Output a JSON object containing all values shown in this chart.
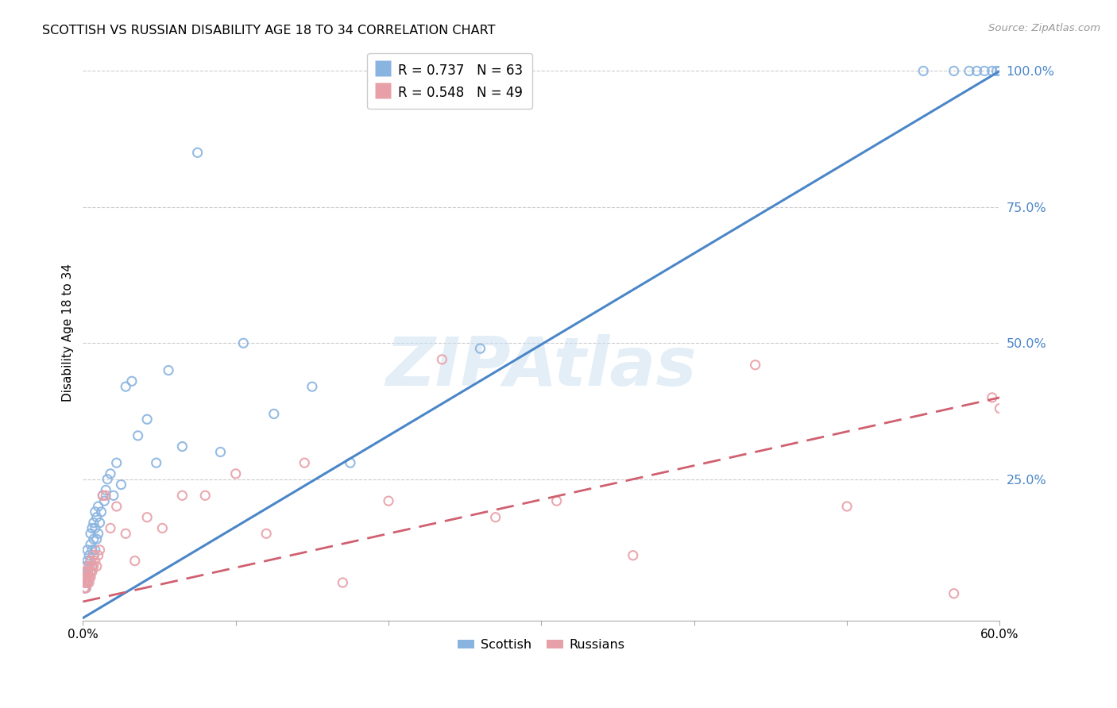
{
  "title": "SCOTTISH VS RUSSIAN DISABILITY AGE 18 TO 34 CORRELATION CHART",
  "source": "Source: ZipAtlas.com",
  "ylabel": "Disability Age 18 to 34",
  "xlim": [
    0.0,
    0.6
  ],
  "ylim": [
    -0.01,
    1.05
  ],
  "xtick_labels": [
    "0.0%",
    "",
    "",
    "",
    "",
    "",
    "60.0%"
  ],
  "xtick_vals": [
    0.0,
    0.1,
    0.2,
    0.3,
    0.4,
    0.5,
    0.6
  ],
  "yticks_right": [
    0.25,
    0.5,
    0.75,
    1.0
  ],
  "scottish_R": 0.737,
  "scottish_N": 63,
  "russian_R": 0.548,
  "russian_N": 49,
  "scottish_color": "#8ab4e0",
  "russian_color": "#e8a0a8",
  "scottish_line_color": "#4a86c8",
  "russian_line_color": "#d06070",
  "background_color": "#ffffff",
  "scottish_line_x0": 0.0,
  "scottish_line_y0": -0.005,
  "scottish_line_x1": 0.6,
  "scottish_line_y1": 1.0,
  "russian_line_x0": 0.0,
  "russian_line_y0": 0.025,
  "russian_line_x1": 0.6,
  "russian_line_y1": 0.4,
  "scottish_x": [
    0.001,
    0.001,
    0.001,
    0.002,
    0.002,
    0.002,
    0.002,
    0.003,
    0.003,
    0.003,
    0.003,
    0.004,
    0.004,
    0.004,
    0.005,
    0.005,
    0.005,
    0.005,
    0.006,
    0.006,
    0.006,
    0.007,
    0.007,
    0.007,
    0.008,
    0.008,
    0.008,
    0.009,
    0.009,
    0.01,
    0.01,
    0.011,
    0.012,
    0.013,
    0.014,
    0.015,
    0.016,
    0.018,
    0.02,
    0.022,
    0.025,
    0.028,
    0.032,
    0.036,
    0.042,
    0.048,
    0.056,
    0.065,
    0.075,
    0.09,
    0.105,
    0.125,
    0.15,
    0.175,
    0.26,
    0.55,
    0.57,
    0.58,
    0.585,
    0.59,
    0.595,
    0.598,
    0.6
  ],
  "scottish_y": [
    0.05,
    0.06,
    0.07,
    0.05,
    0.07,
    0.08,
    0.09,
    0.06,
    0.08,
    0.1,
    0.12,
    0.07,
    0.09,
    0.11,
    0.08,
    0.1,
    0.13,
    0.15,
    0.09,
    0.12,
    0.16,
    0.11,
    0.14,
    0.17,
    0.12,
    0.16,
    0.19,
    0.14,
    0.18,
    0.15,
    0.2,
    0.17,
    0.19,
    0.22,
    0.21,
    0.23,
    0.25,
    0.26,
    0.22,
    0.28,
    0.24,
    0.42,
    0.43,
    0.33,
    0.36,
    0.28,
    0.45,
    0.31,
    0.85,
    0.3,
    0.5,
    0.37,
    0.42,
    0.28,
    0.49,
    1.0,
    1.0,
    1.0,
    1.0,
    1.0,
    1.0,
    1.0,
    1.0
  ],
  "russian_x": [
    0.001,
    0.001,
    0.001,
    0.001,
    0.002,
    0.002,
    0.002,
    0.002,
    0.003,
    0.003,
    0.003,
    0.004,
    0.004,
    0.004,
    0.005,
    0.005,
    0.005,
    0.006,
    0.006,
    0.007,
    0.007,
    0.008,
    0.009,
    0.01,
    0.011,
    0.013,
    0.015,
    0.018,
    0.022,
    0.028,
    0.034,
    0.042,
    0.052,
    0.065,
    0.08,
    0.1,
    0.12,
    0.145,
    0.17,
    0.2,
    0.235,
    0.27,
    0.31,
    0.36,
    0.44,
    0.5,
    0.57,
    0.595,
    0.6
  ],
  "russian_y": [
    0.05,
    0.06,
    0.07,
    0.08,
    0.05,
    0.06,
    0.07,
    0.08,
    0.06,
    0.07,
    0.08,
    0.06,
    0.07,
    0.09,
    0.07,
    0.08,
    0.1,
    0.08,
    0.09,
    0.09,
    0.11,
    0.1,
    0.09,
    0.11,
    0.12,
    0.22,
    0.22,
    0.16,
    0.2,
    0.15,
    0.1,
    0.18,
    0.16,
    0.22,
    0.22,
    0.26,
    0.15,
    0.28,
    0.06,
    0.21,
    0.47,
    0.18,
    0.21,
    0.11,
    0.46,
    0.2,
    0.04,
    0.4,
    0.38
  ]
}
